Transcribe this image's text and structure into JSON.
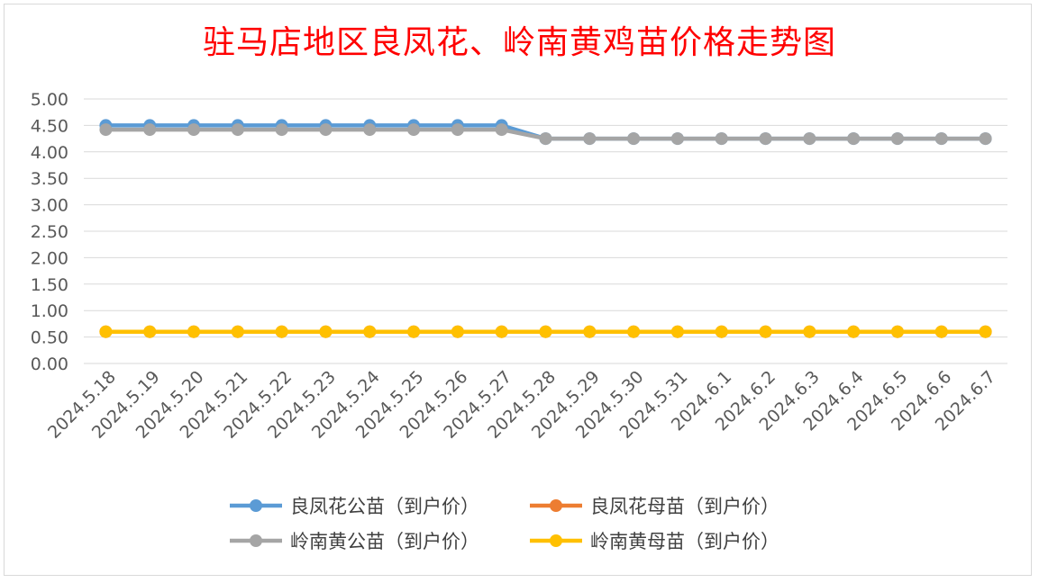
{
  "chart_data": {
    "type": "line",
    "title": "驻马店地区良凤花、岭南黄鸡苗价格走势图",
    "categories": [
      "2024.5.18",
      "2024.5.19",
      "2024.5.20",
      "2024.5.21",
      "2024.5.22",
      "2024.5.23",
      "2024.5.24",
      "2024.5.25",
      "2024.5.26",
      "2024.5.27",
      "2024.5.28",
      "2024.5.29",
      "2024.5.30",
      "2024.5.31",
      "2024.6.1",
      "2024.6.2",
      "2024.6.3",
      "2024.6.4",
      "2024.6.5",
      "2024.6.6",
      "2024.6.7"
    ],
    "ylim": [
      0,
      5
    ],
    "yticks": [
      "0.00",
      "0.50",
      "1.00",
      "1.50",
      "2.00",
      "2.50",
      "3.00",
      "3.50",
      "4.00",
      "4.50",
      "5.00"
    ],
    "grid": true,
    "legend_position": "bottom",
    "series": [
      {
        "name": "良凤花公苗（到户价）",
        "color": "#5b9bd5",
        "values": [
          4.5,
          4.5,
          4.5,
          4.5,
          4.5,
          4.5,
          4.5,
          4.5,
          4.5,
          4.5,
          4.25,
          4.25,
          4.25,
          4.25,
          4.25,
          4.25,
          4.25,
          4.25,
          4.25,
          4.25,
          4.25
        ]
      },
      {
        "name": "良凤花母苗（到户价）",
        "color": "#ed7d31",
        "values": [
          0.6,
          0.6,
          0.6,
          0.6,
          0.6,
          0.6,
          0.6,
          0.6,
          0.6,
          0.6,
          0.6,
          0.6,
          0.6,
          0.6,
          0.6,
          0.6,
          0.6,
          0.6,
          0.6,
          0.6,
          0.6
        ]
      },
      {
        "name": "岭南黄公苗（到户价）",
        "color": "#a5a5a5",
        "values": [
          4.42,
          4.42,
          4.42,
          4.42,
          4.42,
          4.42,
          4.42,
          4.42,
          4.42,
          4.42,
          4.25,
          4.25,
          4.25,
          4.25,
          4.25,
          4.25,
          4.25,
          4.25,
          4.25,
          4.25,
          4.25
        ]
      },
      {
        "name": "岭南黄母苗（到户价）",
        "color": "#ffc000",
        "values": [
          0.6,
          0.6,
          0.6,
          0.6,
          0.6,
          0.6,
          0.6,
          0.6,
          0.6,
          0.6,
          0.6,
          0.6,
          0.6,
          0.6,
          0.6,
          0.6,
          0.6,
          0.6,
          0.6,
          0.6,
          0.6
        ]
      }
    ]
  }
}
